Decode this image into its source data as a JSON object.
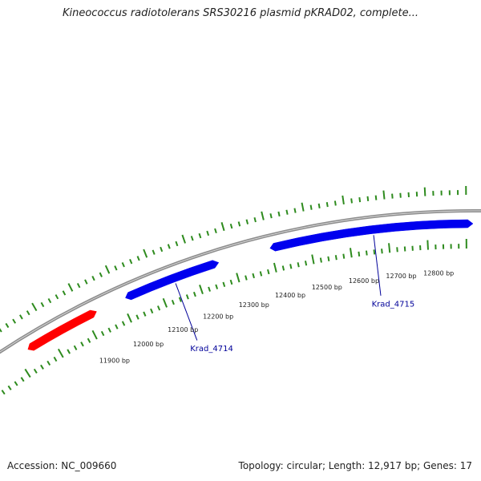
{
  "title": "Kineococcus radiotolerans SRS30216 plasmid pKRAD02, complete...",
  "footer": {
    "accession": "Accession: NC_009660",
    "summary": "Topology: circular; Length: 12,917 bp; Genes: 17"
  },
  "colors": {
    "backbone": "#8c8c8c",
    "tick": "#2e8b1e",
    "gene_forward": "#0000ee",
    "gene_other": "#ff0000",
    "gene_label": "#000099",
    "bp_label": "#222222"
  },
  "map": {
    "sequence_length_bp": 12917,
    "position_labels": [
      {
        "bp": 11900,
        "text": "11900 bp"
      },
      {
        "bp": 12000,
        "text": "12000 bp"
      },
      {
        "bp": 12100,
        "text": "12100 bp"
      },
      {
        "bp": 12200,
        "text": "12200 bp"
      },
      {
        "bp": 12300,
        "text": "12300 bp"
      },
      {
        "bp": 12400,
        "text": "12400 bp"
      },
      {
        "bp": 12500,
        "text": "12500 bp"
      },
      {
        "bp": 12600,
        "text": "12600 bp"
      },
      {
        "bp": 12700,
        "text": "12700 bp"
      },
      {
        "bp": 12800,
        "text": "12800 bp"
      }
    ],
    "genes": [
      {
        "label": "",
        "strand": "forward",
        "start_bp": 11744,
        "end_bp": 11931,
        "color_key": "gene_other"
      },
      {
        "label": "Krad_4714",
        "strand": "forward",
        "start_bp": 12023,
        "end_bp": 12264,
        "color_key": "gene_forward"
      },
      {
        "label": "Krad_4715",
        "strand": "forward",
        "start_bp": 12410,
        "end_bp": 12917,
        "color_key": "gene_forward"
      }
    ]
  }
}
